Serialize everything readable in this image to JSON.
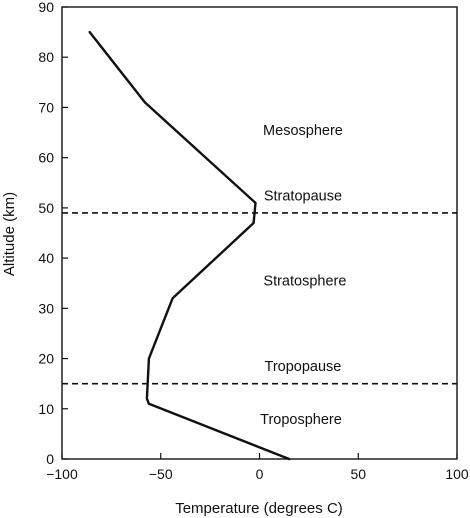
{
  "chart_data": {
    "type": "line",
    "xlabel": "Temperature (degrees C)",
    "ylabel": "Altitude (km)",
    "xlim": [
      -100,
      100
    ],
    "ylim": [
      0,
      90
    ],
    "x_ticks": [
      -100,
      -50,
      0,
      50,
      100
    ],
    "x_tick_labels": [
      "−100",
      "−50",
      "0",
      "50",
      "100"
    ],
    "y_ticks": [
      0,
      10,
      20,
      30,
      40,
      50,
      60,
      70,
      80,
      90
    ],
    "y_tick_labels": [
      "0",
      "10",
      "20",
      "30",
      "40",
      "50",
      "60",
      "70",
      "80",
      "90"
    ],
    "grid": false,
    "line_color": "#111111",
    "series": [
      {
        "points": [
          {
            "x": 15,
            "y": 0
          },
          {
            "x": -56,
            "y": 11
          },
          {
            "x": -57,
            "y": 12
          },
          {
            "x": -56,
            "y": 20
          },
          {
            "x": -44,
            "y": 32
          },
          {
            "x": -3,
            "y": 47
          },
          {
            "x": -2,
            "y": 51
          },
          {
            "x": -58,
            "y": 71
          },
          {
            "x": -86,
            "y": 85
          }
        ]
      }
    ],
    "boundaries": [
      {
        "y": 49,
        "style": "dashed"
      },
      {
        "y": 15,
        "style": "dashed"
      }
    ],
    "annotations": [
      {
        "text": "Mesosphere",
        "x": 22,
        "y": 65.5
      },
      {
        "text": "Stratopause",
        "x": 22,
        "y": 52.5
      },
      {
        "text": "Stratosphere",
        "x": 23,
        "y": 35.5
      },
      {
        "text": "Tropopause",
        "x": 22,
        "y": 18.5
      },
      {
        "text": "Troposphere",
        "x": 21,
        "y": 8
      }
    ]
  }
}
